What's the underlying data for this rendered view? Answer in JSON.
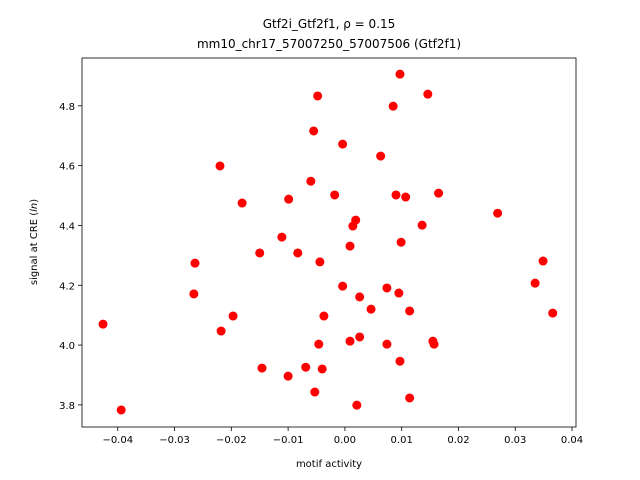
{
  "chart_data": {
    "type": "scatter",
    "title_line1": "Gtf2i_Gtf2f1, ρ = 0.15",
    "title_line2": "mm10_chr17_57007250_57007506 (Gtf2f1)",
    "xlabel": "motif activity",
    "ylabel": "signal at CRE (ln)",
    "xlim": [
      -0.0463,
      0.0407
    ],
    "ylim": [
      3.726,
      4.96
    ],
    "xticks": [
      -0.04,
      -0.03,
      -0.02,
      -0.01,
      0.0,
      0.01,
      0.02,
      0.03,
      0.04
    ],
    "xtick_labels": [
      "−0.04",
      "−0.03",
      "−0.02",
      "−0.01",
      "0.00",
      "0.01",
      "0.02",
      "0.03",
      "0.04"
    ],
    "yticks": [
      3.8,
      4.0,
      4.2,
      4.4,
      4.6,
      4.8
    ],
    "ytick_labels": [
      "3.8",
      "4.0",
      "4.2",
      "4.4",
      "4.6",
      "4.8"
    ],
    "grid": false,
    "marker_color": "#ff0000",
    "points": [
      [
        0.0097,
        4.906
      ],
      [
        0.0146,
        4.839
      ],
      [
        -0.0048,
        4.833
      ],
      [
        0.0085,
        4.799
      ],
      [
        -0.0055,
        4.716
      ],
      [
        -0.0004,
        4.672
      ],
      [
        0.0063,
        4.632
      ],
      [
        -0.022,
        4.599
      ],
      [
        -0.006,
        4.548
      ],
      [
        0.0165,
        4.508
      ],
      [
        -0.0018,
        4.502
      ],
      [
        0.009,
        4.502
      ],
      [
        0.0107,
        4.495
      ],
      [
        -0.0099,
        4.488
      ],
      [
        -0.0181,
        4.475
      ],
      [
        0.0269,
        4.441
      ],
      [
        0.0019,
        4.418
      ],
      [
        0.0014,
        4.398
      ],
      [
        0.0136,
        4.401
      ],
      [
        -0.0111,
        4.361
      ],
      [
        0.0009,
        4.331
      ],
      [
        0.0099,
        4.344
      ],
      [
        -0.0083,
        4.308
      ],
      [
        -0.015,
        4.308
      ],
      [
        -0.0264,
        4.274
      ],
      [
        -0.0044,
        4.278
      ],
      [
        0.0349,
        4.281
      ],
      [
        0.0335,
        4.207
      ],
      [
        -0.0004,
        4.197
      ],
      [
        0.0074,
        4.191
      ],
      [
        -0.0266,
        4.171
      ],
      [
        0.0095,
        4.174
      ],
      [
        0.0026,
        4.161
      ],
      [
        0.0046,
        4.12
      ],
      [
        0.0114,
        4.114
      ],
      [
        0.0366,
        4.107
      ],
      [
        -0.0037,
        4.097
      ],
      [
        -0.0197,
        4.097
      ],
      [
        -0.0426,
        4.07
      ],
      [
        -0.0218,
        4.047
      ],
      [
        0.0026,
        4.027
      ],
      [
        0.0009,
        4.013
      ],
      [
        0.0155,
        4.013
      ],
      [
        -0.0046,
        4.003
      ],
      [
        0.0074,
        4.003
      ],
      [
        0.0157,
        4.003
      ],
      [
        0.0097,
        3.946
      ],
      [
        -0.0146,
        3.923
      ],
      [
        -0.0069,
        3.926
      ],
      [
        -0.004,
        3.92
      ],
      [
        -0.01,
        3.896
      ],
      [
        -0.0053,
        3.843
      ],
      [
        0.0114,
        3.823
      ],
      [
        -0.0394,
        3.783
      ],
      [
        0.0021,
        3.799
      ]
    ]
  }
}
